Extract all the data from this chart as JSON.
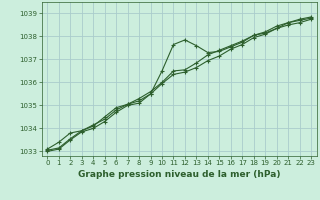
{
  "title": "Graphe pression niveau de la mer (hPa)",
  "background_color": "#cceedd",
  "grid_color": "#aacccc",
  "line_color": "#2d5f2d",
  "xlim": [
    -0.5,
    23.5
  ],
  "ylim": [
    1032.8,
    1039.5
  ],
  "yticks": [
    1033,
    1034,
    1035,
    1036,
    1037,
    1038,
    1039
  ],
  "xticks": [
    0,
    1,
    2,
    3,
    4,
    5,
    6,
    7,
    8,
    9,
    10,
    11,
    12,
    13,
    14,
    15,
    16,
    17,
    18,
    19,
    20,
    21,
    22,
    23
  ],
  "series": [
    [
      1033.1,
      1033.4,
      1033.8,
      1033.9,
      1034.1,
      1034.5,
      1034.9,
      1035.05,
      1035.3,
      1035.6,
      1036.0,
      1036.5,
      1036.55,
      1036.85,
      1037.2,
      1037.4,
      1037.6,
      1037.8,
      1038.05,
      1038.15,
      1038.35,
      1038.5,
      1038.6,
      1038.75
    ],
    [
      1033.0,
      1033.1,
      1033.5,
      1033.85,
      1034.0,
      1034.3,
      1034.7,
      1035.0,
      1035.1,
      1035.5,
      1036.5,
      1037.65,
      1037.85,
      1037.6,
      1037.3,
      1037.35,
      1037.55,
      1037.75,
      1038.05,
      1038.2,
      1038.45,
      1038.6,
      1038.75,
      1038.85
    ],
    [
      1033.05,
      1033.15,
      1033.55,
      1033.9,
      1034.15,
      1034.4,
      1034.8,
      1035.05,
      1035.2,
      1035.5,
      1035.95,
      1036.35,
      1036.45,
      1036.65,
      1036.95,
      1037.15,
      1037.45,
      1037.65,
      1037.95,
      1038.1,
      1038.35,
      1038.6,
      1038.7,
      1038.8
    ]
  ],
  "ylabel_fontsize": 5.5,
  "xlabel_fontsize": 5.5,
  "title_fontsize": 6.5,
  "tick_fontsize": 5.0
}
